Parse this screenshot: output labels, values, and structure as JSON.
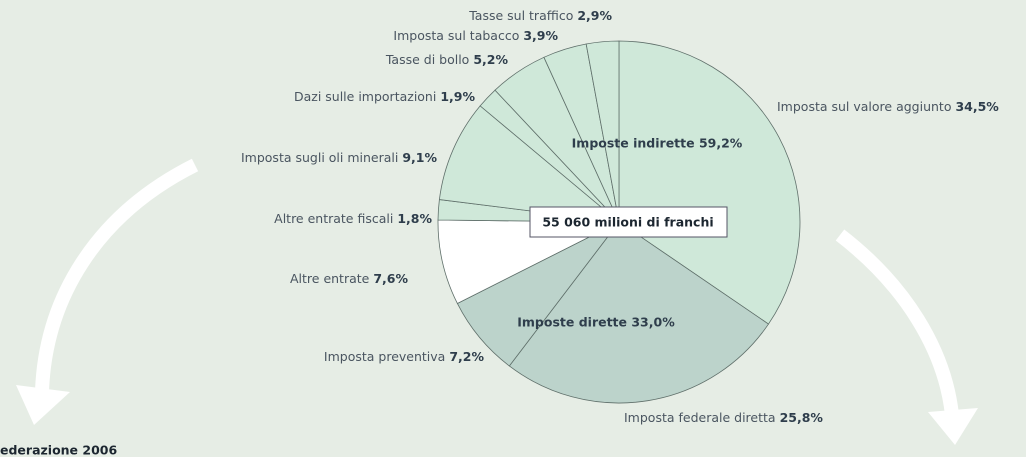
{
  "chart_data": {
    "type": "pie",
    "categories": [
      "Imposta sul valore aggiunto",
      "Imposta federale diretta",
      "Imposta preventiva",
      "Altre entrate",
      "Altre entrate fiscali",
      "Imposta sugli oli minerali",
      "Dazi sulle importazioni",
      "Tasse di bollo",
      "Imposta sul tabacco",
      "Tasse sul traffico"
    ],
    "values": [
      34.5,
      25.8,
      7.2,
      7.6,
      1.8,
      9.1,
      1.9,
      5.2,
      3.9,
      2.9
    ],
    "value_labels": [
      "34,5%",
      "25,8%",
      "7,2%",
      "7,6%",
      "1,8%",
      "9,1%",
      "1,9%",
      "5,2%",
      "3,9%",
      "2,9%"
    ],
    "colors": [
      "#cfe8d9",
      "#bcd3cb",
      "#bcd3cb",
      "#ffffff",
      "#cfe8d9",
      "#cfe8d9",
      "#cfe8d9",
      "#cfe8d9",
      "#cfe8d9",
      "#cfe8d9"
    ],
    "annotations": [
      "Imposte indirette 59,2%",
      "Imposte dirette 33,0%",
      "55 060 milioni di franchi",
      "ederazione 2006"
    ]
  }
}
